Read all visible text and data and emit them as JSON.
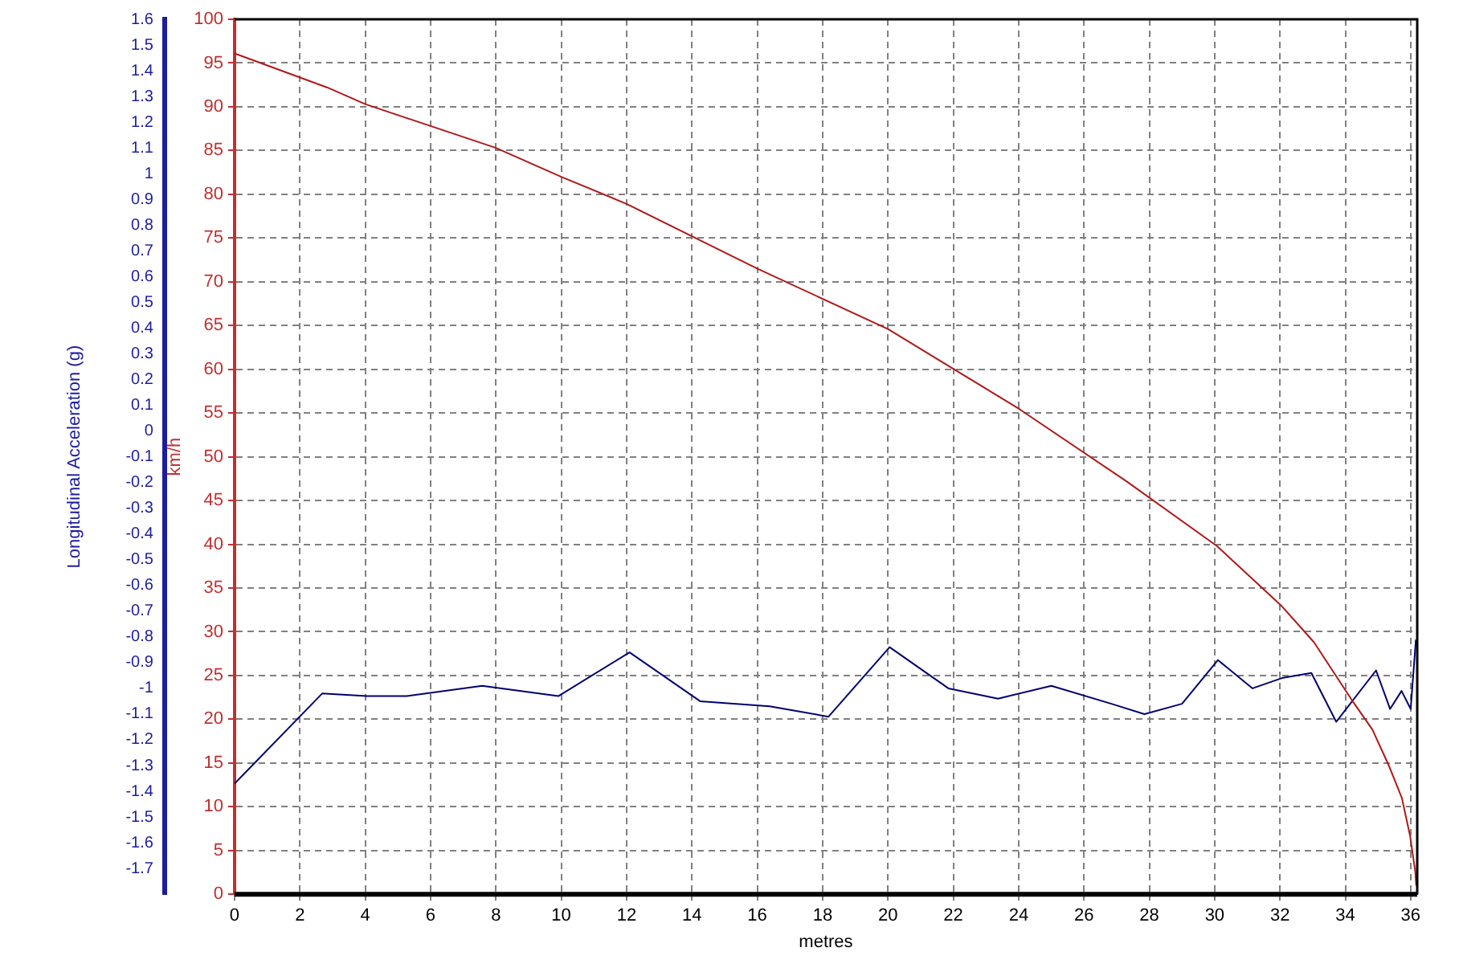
{
  "chart_data": {
    "type": "line",
    "xlabel": "metres",
    "ylabel": "km/h",
    "y2label": "Longitudinal Acceleration (g)",
    "xlim": [
      0,
      36.2
    ],
    "xticks": [
      0,
      2,
      4,
      6,
      8,
      10,
      12,
      14,
      16,
      18,
      20,
      22,
      24,
      26,
      28,
      30,
      32,
      34,
      36
    ],
    "ylim": [
      0,
      100
    ],
    "yticks": [
      0,
      5,
      10,
      15,
      20,
      25,
      30,
      35,
      40,
      45,
      50,
      55,
      60,
      65,
      70,
      75,
      80,
      85,
      90,
      95,
      100
    ],
    "y2lim": [
      -1.8,
      1.6
    ],
    "y2ticks": [
      -1.7,
      -1.6,
      -1.5,
      -1.4,
      -1.3,
      -1.2,
      -1.1,
      -1,
      -0.9,
      -0.8,
      -0.7,
      -0.6,
      -0.5,
      -0.4,
      -0.3,
      -0.2,
      -0.1,
      0,
      0.1,
      0.2,
      0.3,
      0.4,
      0.5,
      0.6,
      0.7,
      0.8,
      0.9,
      1,
      1.1,
      1.2,
      1.3,
      1.4,
      1.5,
      1.6
    ],
    "grid": true,
    "legend": false,
    "marker": "none",
    "line_style": "solid",
    "series": [
      {
        "color": "#b01818",
        "x": [
          0,
          2.84,
          4,
          8,
          10,
          12,
          16,
          20,
          24,
          27.3,
          30.07,
          32.06,
          33.04,
          34.18,
          34.83,
          35.32,
          35.73,
          35.98,
          36.14,
          36.17
        ],
        "values": [
          96.1,
          92.2,
          90.3,
          85.3,
          82,
          78.9,
          71.5,
          64.6,
          55.5,
          47.2,
          39.8,
          32.9,
          28.8,
          22.3,
          18.8,
          14.8,
          11,
          6.7,
          2.6,
          1
        ]
      },
      {
        "color": "#000070",
        "axis": "y2",
        "x": [
          0,
          2.68,
          4.05,
          5.27,
          7.58,
          9.91,
          12.09,
          14.25,
          16.38,
          18.18,
          20.05,
          21.85,
          23.37,
          25,
          26.84,
          27.85,
          29,
          30.1,
          31.16,
          32.06,
          32.96,
          33.72,
          34.94,
          35.37,
          35.72,
          36,
          36.16
        ],
        "values": [
          -1.37,
          -1.02,
          -1.03,
          -1.03,
          -0.99,
          -1.03,
          -0.86,
          -1.05,
          -1.07,
          -1.11,
          -0.84,
          -1,
          -1.04,
          -0.99,
          -1.06,
          -1.1,
          -1.06,
          -0.89,
          -1,
          -0.96,
          -0.94,
          -1.13,
          -0.93,
          -1.08,
          -1.01,
          -1.08,
          -0.81
        ]
      }
    ]
  }
}
